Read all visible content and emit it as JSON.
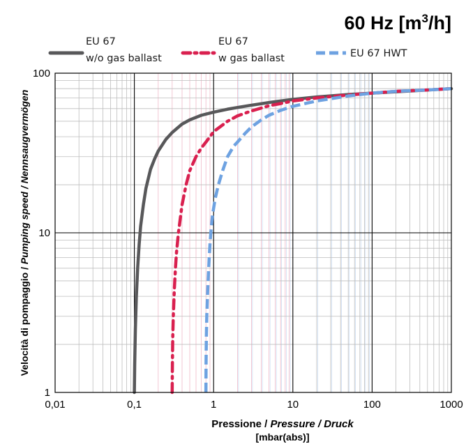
{
  "chart_data": {
    "type": "line",
    "title_main": "60 Hz [m",
    "title_sup": "3",
    "title_end": "/h]",
    "x_axis": {
      "scale": "log",
      "range": [
        0.01,
        1000
      ],
      "tick_labels": [
        "0,01",
        "0,1",
        "1",
        "10",
        "100",
        "1000"
      ],
      "label_parts": [
        "Pressione / ",
        "Pressure / Druck"
      ],
      "unit": "[mbar(abs)]"
    },
    "y_axis": {
      "scale": "log",
      "range": [
        1,
        100
      ],
      "tick_labels": [
        "1",
        "10",
        "100"
      ],
      "label_parts": [
        "Velocità di pompaggio / ",
        "Pumping speed / Nennsaugvermögen"
      ]
    },
    "grid": true,
    "legend_position": "top",
    "series": [
      {
        "name_line1": "EU 67",
        "name_line2": "w/o gas ballast",
        "color": "#58585a",
        "dash": "solid",
        "x": [
          0.1,
          0.101,
          0.103,
          0.106,
          0.11,
          0.115,
          0.12,
          0.13,
          0.14,
          0.16,
          0.18,
          0.2,
          0.25,
          0.3,
          0.4,
          0.5,
          0.7,
          1,
          1.5,
          2,
          3,
          5,
          7,
          10,
          20,
          50,
          100,
          200,
          500,
          1000
        ],
        "y": [
          1,
          1.5,
          2.5,
          4,
          6,
          8.5,
          11,
          15,
          19,
          25,
          29,
          32.5,
          38.5,
          42.5,
          48,
          51,
          54.5,
          57,
          59.5,
          61,
          63,
          65.5,
          67,
          68.5,
          71,
          73.5,
          75,
          76.5,
          78.5,
          80
        ]
      },
      {
        "name_line1": "EU 67",
        "name_line2": "w gas ballast",
        "color": "#d9204f",
        "dash": "dashdot",
        "x": [
          0.3,
          0.302,
          0.305,
          0.31,
          0.32,
          0.33,
          0.34,
          0.36,
          0.4,
          0.45,
          0.5,
          0.6,
          0.7,
          0.8,
          1,
          1.5,
          2,
          3,
          5,
          7,
          10,
          20,
          50,
          100,
          200,
          500,
          1000
        ],
        "y": [
          1,
          1.5,
          2.2,
          3,
          4.5,
          6,
          7.5,
          10,
          15,
          20,
          24.5,
          30,
          34,
          37,
          43,
          50,
          54,
          58,
          62.5,
          64.5,
          67,
          70,
          73,
          75,
          77,
          78.5,
          80
        ]
      },
      {
        "name_line1": "EU 67 HWT",
        "name_line2": "",
        "color": "#6ea2e1",
        "dash": "dashed",
        "x": [
          0.8,
          0.803,
          0.81,
          0.82,
          0.84,
          0.86,
          0.88,
          0.9,
          0.93,
          0.97,
          1.05,
          1.15,
          1.3,
          1.5,
          1.8,
          2,
          2.5,
          3,
          4,
          5,
          7,
          10,
          20,
          50,
          100,
          200,
          500,
          1000
        ],
        "y": [
          1,
          1.5,
          2.2,
          3,
          4.2,
          5.5,
          7,
          8.5,
          10.5,
          13,
          16.5,
          20,
          24.5,
          30,
          35,
          37,
          42,
          46,
          51,
          54.5,
          58.5,
          62,
          67,
          72,
          75,
          77,
          78.5,
          80
        ]
      }
    ]
  }
}
